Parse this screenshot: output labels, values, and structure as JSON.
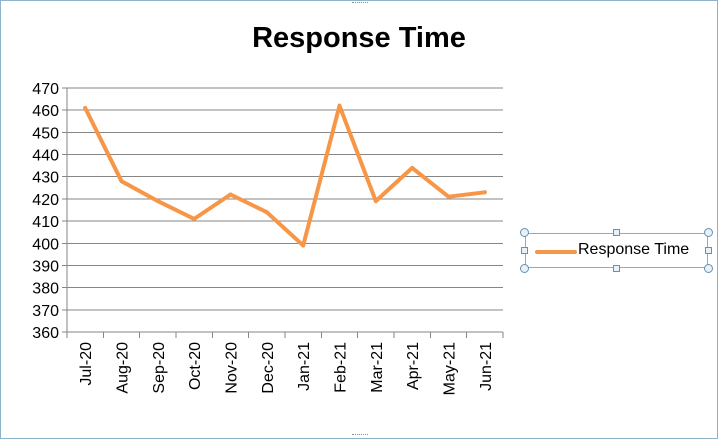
{
  "chart_data": {
    "type": "line",
    "title": "Response Time",
    "xlabel": "",
    "ylabel": "",
    "categories": [
      "Jul-20",
      "Aug-20",
      "Sep-20",
      "Oct-20",
      "Nov-20",
      "Dec-20",
      "Jan-21",
      "Feb-21",
      "Mar-21",
      "Apr-21",
      "May-21",
      "Jun-21"
    ],
    "series": [
      {
        "name": "Response Time",
        "values": [
          461,
          428,
          419,
          411,
          422,
          414,
          399,
          462,
          419,
          434,
          421,
          423
        ],
        "color": "#f79646"
      }
    ],
    "ylim": [
      360,
      470
    ],
    "ytick_step": 10,
    "grid": true,
    "legend_position": "right"
  }
}
